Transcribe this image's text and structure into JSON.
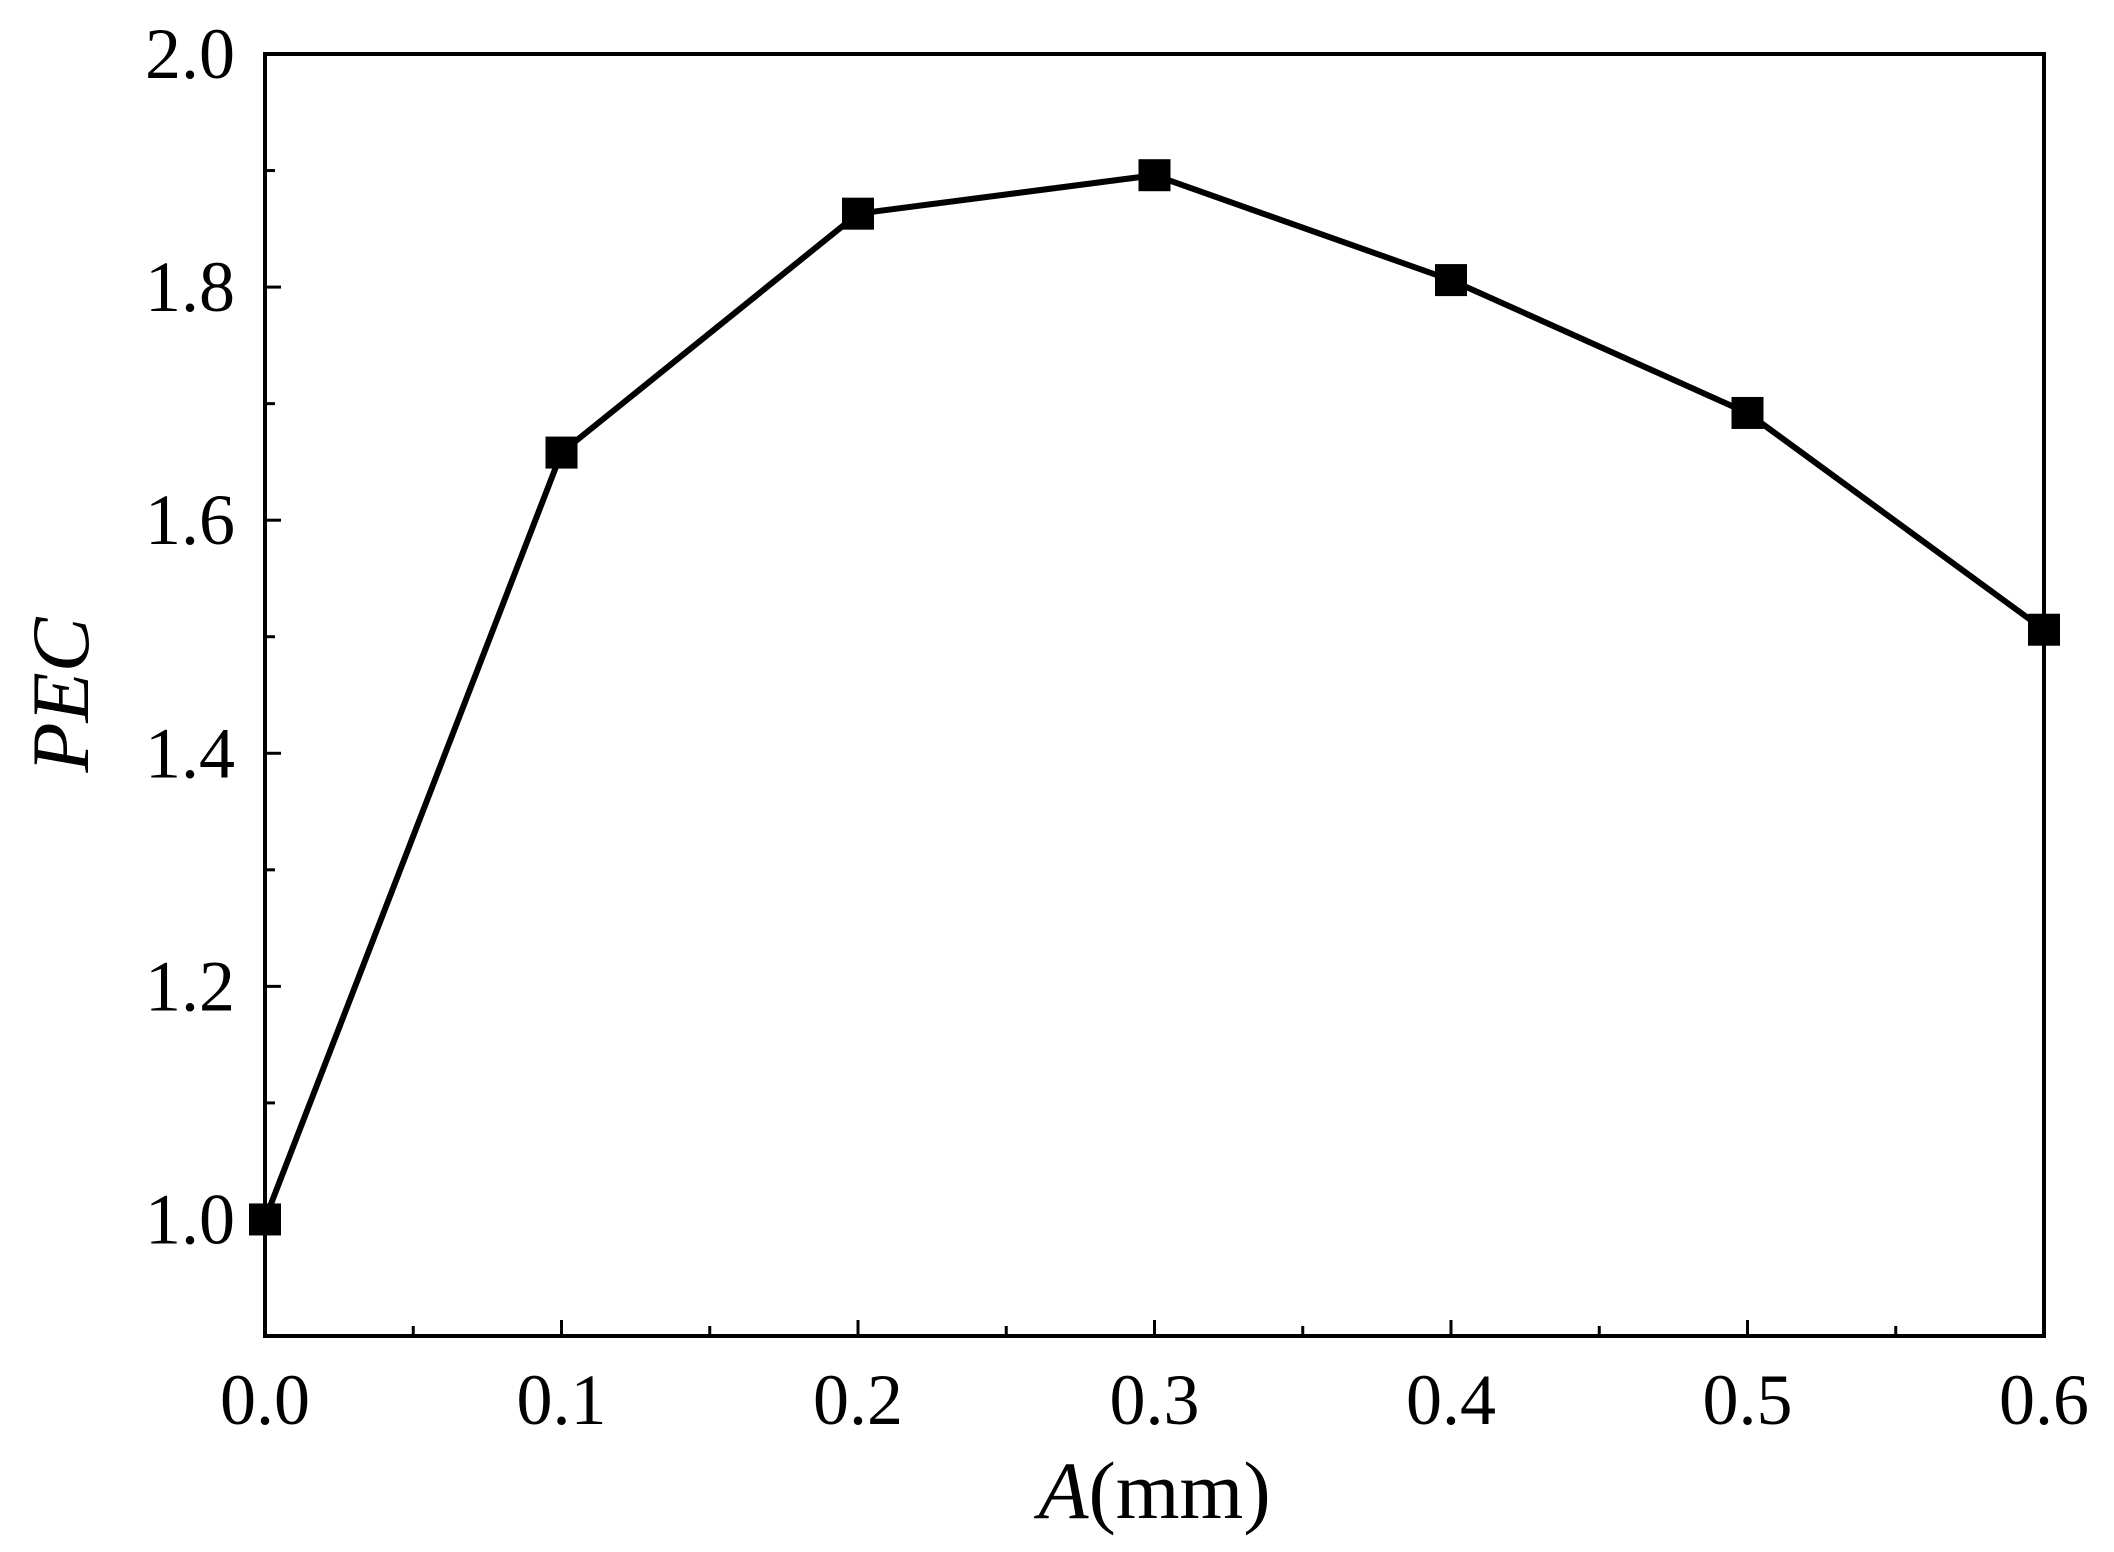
{
  "chart_data": {
    "type": "line",
    "title": "",
    "xlabel": {
      "symbol": "A",
      "unit": "(mm)"
    },
    "ylabel": "PEC",
    "x": [
      0.0,
      0.1,
      0.2,
      0.3,
      0.4,
      0.5,
      0.6
    ],
    "series": [
      {
        "values": [
          1.0,
          1.658,
          1.863,
          1.896,
          1.806,
          1.692,
          1.506
        ],
        "color": "#000000",
        "marker": "square"
      }
    ],
    "xlim": [
      0.0,
      0.6
    ],
    "ylim": [
      0.9,
      2.0
    ],
    "x_ticks": [
      "0.0",
      "0.1",
      "0.2",
      "0.3",
      "0.4",
      "0.5",
      "0.6"
    ],
    "y_ticks": [
      "1.0",
      "1.2",
      "1.4",
      "1.6",
      "1.8",
      "2.0"
    ],
    "grid": false,
    "legend": "none"
  }
}
